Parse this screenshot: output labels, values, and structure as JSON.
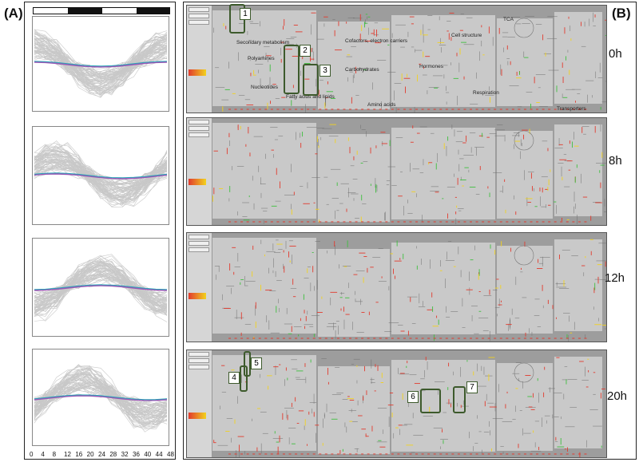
{
  "panel_a_label": "(A)",
  "panel_b_label": "(B)",
  "light_dark_bar": [
    "light",
    "dark",
    "light",
    "dark"
  ],
  "x_ticks": [
    "0",
    "4",
    "8",
    "12",
    "16",
    "20",
    "24",
    "28",
    "32",
    "36",
    "40",
    "44",
    "48"
  ],
  "colors": {
    "lines": "#c8c8c8",
    "mean": "#9b59b6",
    "mean2": "#2aa6b8",
    "callout": "#3d5a2c",
    "map_bg": "#9a9a9a",
    "red": "#e23b2e",
    "green": "#3fbf3f",
    "yellow": "#f2d21e"
  },
  "maps": [
    {
      "time": "0h",
      "callouts": [
        "1",
        "2",
        "3"
      ]
    },
    {
      "time": "8h",
      "callouts": []
    },
    {
      "time": "12h",
      "callouts": []
    },
    {
      "time": "20h",
      "callouts": [
        "4",
        "5",
        "6",
        "7"
      ]
    }
  ],
  "annotations": {
    "secondary": "Secondary metabolism",
    "cofactors": "Cofactors, electron carriers",
    "cell_structure": "Cell structure",
    "tca": "TCA",
    "polyamines": "Polyamines",
    "carbohydrates": "Carbohydrates",
    "hormones": "Hormones",
    "nucleotides": "Nucleotides",
    "fatty": "Fatty acids and lipids",
    "respiration": "Respiration",
    "amino": "Amino acids",
    "transporters": "Transporters"
  }
}
